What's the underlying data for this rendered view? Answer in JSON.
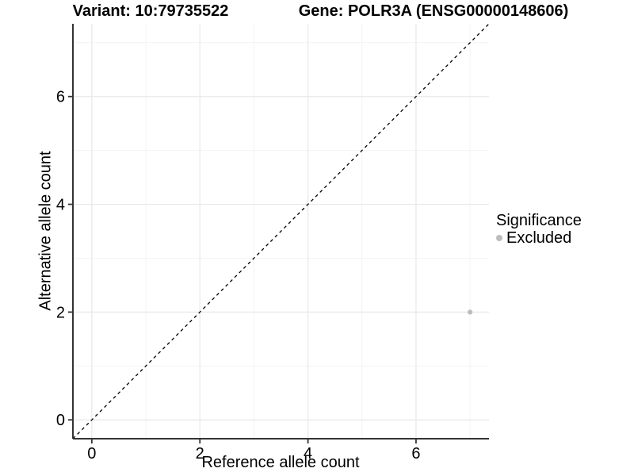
{
  "header": {
    "left_title": "Variant: 10:79735522",
    "right_title": "Gene: POLR3A (ENSG00000148606)"
  },
  "chart_data": {
    "type": "scatter",
    "xlabel": "Reference allele count",
    "ylabel": "Alternative allele count",
    "xlim": [
      -0.35,
      7.35
    ],
    "ylim": [
      -0.35,
      7.35
    ],
    "x_ticks": [
      0,
      2,
      4,
      6
    ],
    "y_ticks": [
      0,
      2,
      4,
      6
    ],
    "x_minor_ticks": [
      1,
      3,
      5,
      7
    ],
    "y_minor_ticks": [
      1,
      3,
      5,
      7
    ],
    "grid": true,
    "points": [
      {
        "x": 7,
        "y": 2,
        "series": "Excluded"
      }
    ],
    "reference_line": {
      "type": "identity",
      "style": "dashed",
      "dash": [
        4,
        4
      ]
    },
    "legend": {
      "title": "Significance",
      "position": "right",
      "items": [
        {
          "label": "Excluded",
          "color": "#bdbdbd"
        }
      ]
    }
  },
  "colors": {
    "background": "#ffffff",
    "text": "#000000",
    "axis_line": "#333333",
    "tick_mark": "#333333",
    "grid_major": "#e8e8e8",
    "grid_minor": "#f3f3f3",
    "dashed_line": "#000000",
    "point": "#bdbdbd"
  }
}
